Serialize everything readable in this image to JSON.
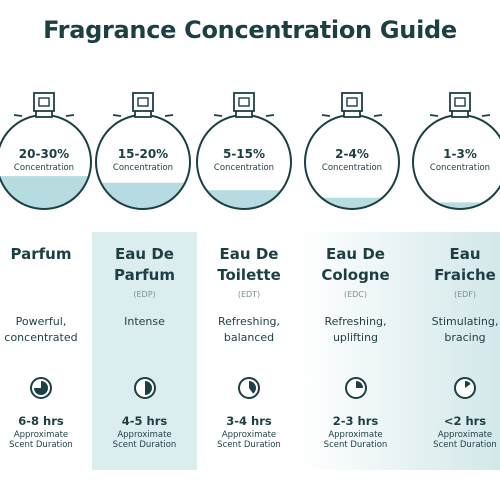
{
  "title": "Fragrance Concentration Guide",
  "concentration_label": "Concentration",
  "duration_line1": "Approximate",
  "duration_line2": "Scent Duration",
  "colors": {
    "text_dark": "#1c3f44",
    "liquid": "#b6dbe0",
    "column_bg": "#dcedef",
    "bottle_outline": "#1c3f44"
  },
  "fragrances": [
    {
      "name_line1": "Parfum",
      "name_line2": "",
      "abbr": "",
      "concentration": "20-30%",
      "fill_level": 0.35,
      "desc_line1": "Powerful,",
      "desc_line2": "concentrated",
      "duration": "6-8 hrs",
      "clock_fraction": 0.75
    },
    {
      "name_line1": "Eau De",
      "name_line2": "Parfum",
      "abbr": "(EDP)",
      "concentration": "15-20%",
      "fill_level": 0.28,
      "desc_line1": "Intense",
      "desc_line2": "",
      "duration": "4-5 hrs",
      "clock_fraction": 0.5
    },
    {
      "name_line1": "Eau De",
      "name_line2": "Toilette",
      "abbr": "(EDT)",
      "concentration": "5-15%",
      "fill_level": 0.2,
      "desc_line1": "Refreshing,",
      "desc_line2": "balanced",
      "duration": "3-4 hrs",
      "clock_fraction": 0.4
    },
    {
      "name_line1": "Eau De",
      "name_line2": "Cologne",
      "abbr": "(EDC)",
      "concentration": "2-4%",
      "fill_level": 0.12,
      "desc_line1": "Refreshing,",
      "desc_line2": "uplifting",
      "duration": "2-3 hrs",
      "clock_fraction": 0.25
    },
    {
      "name_line1": "Eau",
      "name_line2": "Fraiche",
      "abbr": "(EDF)",
      "concentration": "1-3%",
      "fill_level": 0.07,
      "desc_line1": "Stimulating,",
      "desc_line2": "bracing",
      "duration": "<2 hrs",
      "clock_fraction": 0.15
    }
  ]
}
